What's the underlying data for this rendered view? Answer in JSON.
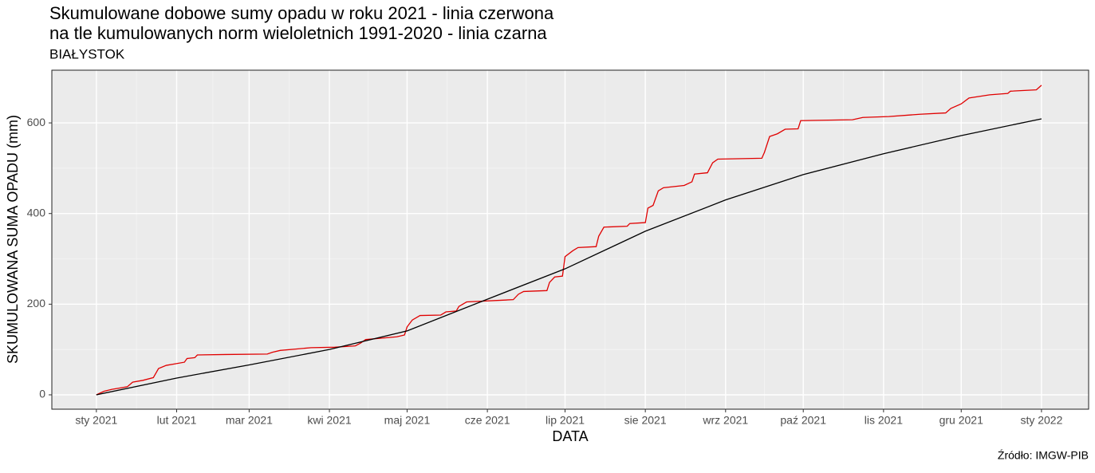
{
  "chart_data": {
    "type": "line",
    "title": [
      "Skumulowane dobowe sumy opadu w roku 2021 - linia czerwona",
      "na tle kumulowanych norm wieloletnich 1991-2020 - linia czarna"
    ],
    "subtitle": "BIAŁYSTOK",
    "caption": "Źródło: IMGW-PIB",
    "xlabel": "DATA",
    "ylabel": "SKUMULOWANA SUMA OPADU (mm)",
    "xlim": [
      -17.2,
      383.2
    ],
    "xticks": [
      {
        "value": 0,
        "label": "sty 2021"
      },
      {
        "value": 31,
        "label": "lut 2021"
      },
      {
        "value": 59,
        "label": "mar 2021"
      },
      {
        "value": 90,
        "label": "kwi 2021"
      },
      {
        "value": 120,
        "label": "maj 2021"
      },
      {
        "value": 151,
        "label": "cze 2021"
      },
      {
        "value": 181,
        "label": "lip 2021"
      },
      {
        "value": 212,
        "label": "sie 2021"
      },
      {
        "value": 243,
        "label": "wrz 2021"
      },
      {
        "value": 273,
        "label": "paź 2021"
      },
      {
        "value": 304,
        "label": "lis 2021"
      },
      {
        "value": 334,
        "label": "gru 2021"
      },
      {
        "value": 365,
        "label": "sty 2022"
      }
    ],
    "ylim": [
      -31.7,
      716.3
    ],
    "yticks": [
      0,
      200,
      400,
      600
    ],
    "grid": true,
    "series": [
      {
        "color": "#e00000",
        "x": [
          0,
          3,
          6,
          9,
          12,
          14,
          18,
          22,
          24,
          27,
          30,
          34,
          35,
          38,
          39,
          50,
          66,
          68,
          71,
          77,
          83,
          92,
          100,
          102,
          104,
          110,
          116,
          119,
          120,
          122,
          125,
          133,
          135,
          139,
          140,
          143,
          161,
          163,
          165,
          174,
          175,
          177,
          180,
          181,
          184,
          186,
          193,
          194,
          196,
          205,
          206,
          212,
          213,
          215,
          217,
          219,
          227,
          230,
          231,
          236,
          238,
          240,
          257,
          258,
          260,
          263,
          266,
          271,
          272,
          292,
          296,
          306,
          318,
          328,
          330,
          334,
          337,
          345,
          352,
          353,
          363,
          365
        ],
        "values": [
          0,
          8,
          12,
          15,
          18,
          28,
          32,
          38,
          58,
          65,
          68,
          72,
          80,
          82,
          88,
          89,
          90,
          94,
          98,
          101,
          104,
          105,
          108,
          114,
          122,
          125,
          128,
          132,
          150,
          165,
          175,
          176,
          183,
          185,
          195,
          205,
          210,
          222,
          228,
          230,
          248,
          260,
          262,
          305,
          318,
          325,
          327,
          350,
          370,
          372,
          378,
          380,
          412,
          418,
          450,
          457,
          462,
          470,
          487,
          490,
          512,
          520,
          522,
          535,
          570,
          576,
          586,
          587,
          605,
          607,
          612,
          614,
          619,
          622,
          632,
          642,
          655,
          662,
          665,
          670,
          673,
          683
        ]
      },
      {
        "color": "#000000",
        "x": [
          0,
          31,
          59,
          90,
          120,
          151,
          181,
          212,
          243,
          273,
          304,
          334,
          365
        ],
        "values": [
          0,
          37,
          66,
          100,
          141,
          211,
          278,
          361,
          430,
          486,
          532,
          572,
          609
        ]
      }
    ]
  }
}
